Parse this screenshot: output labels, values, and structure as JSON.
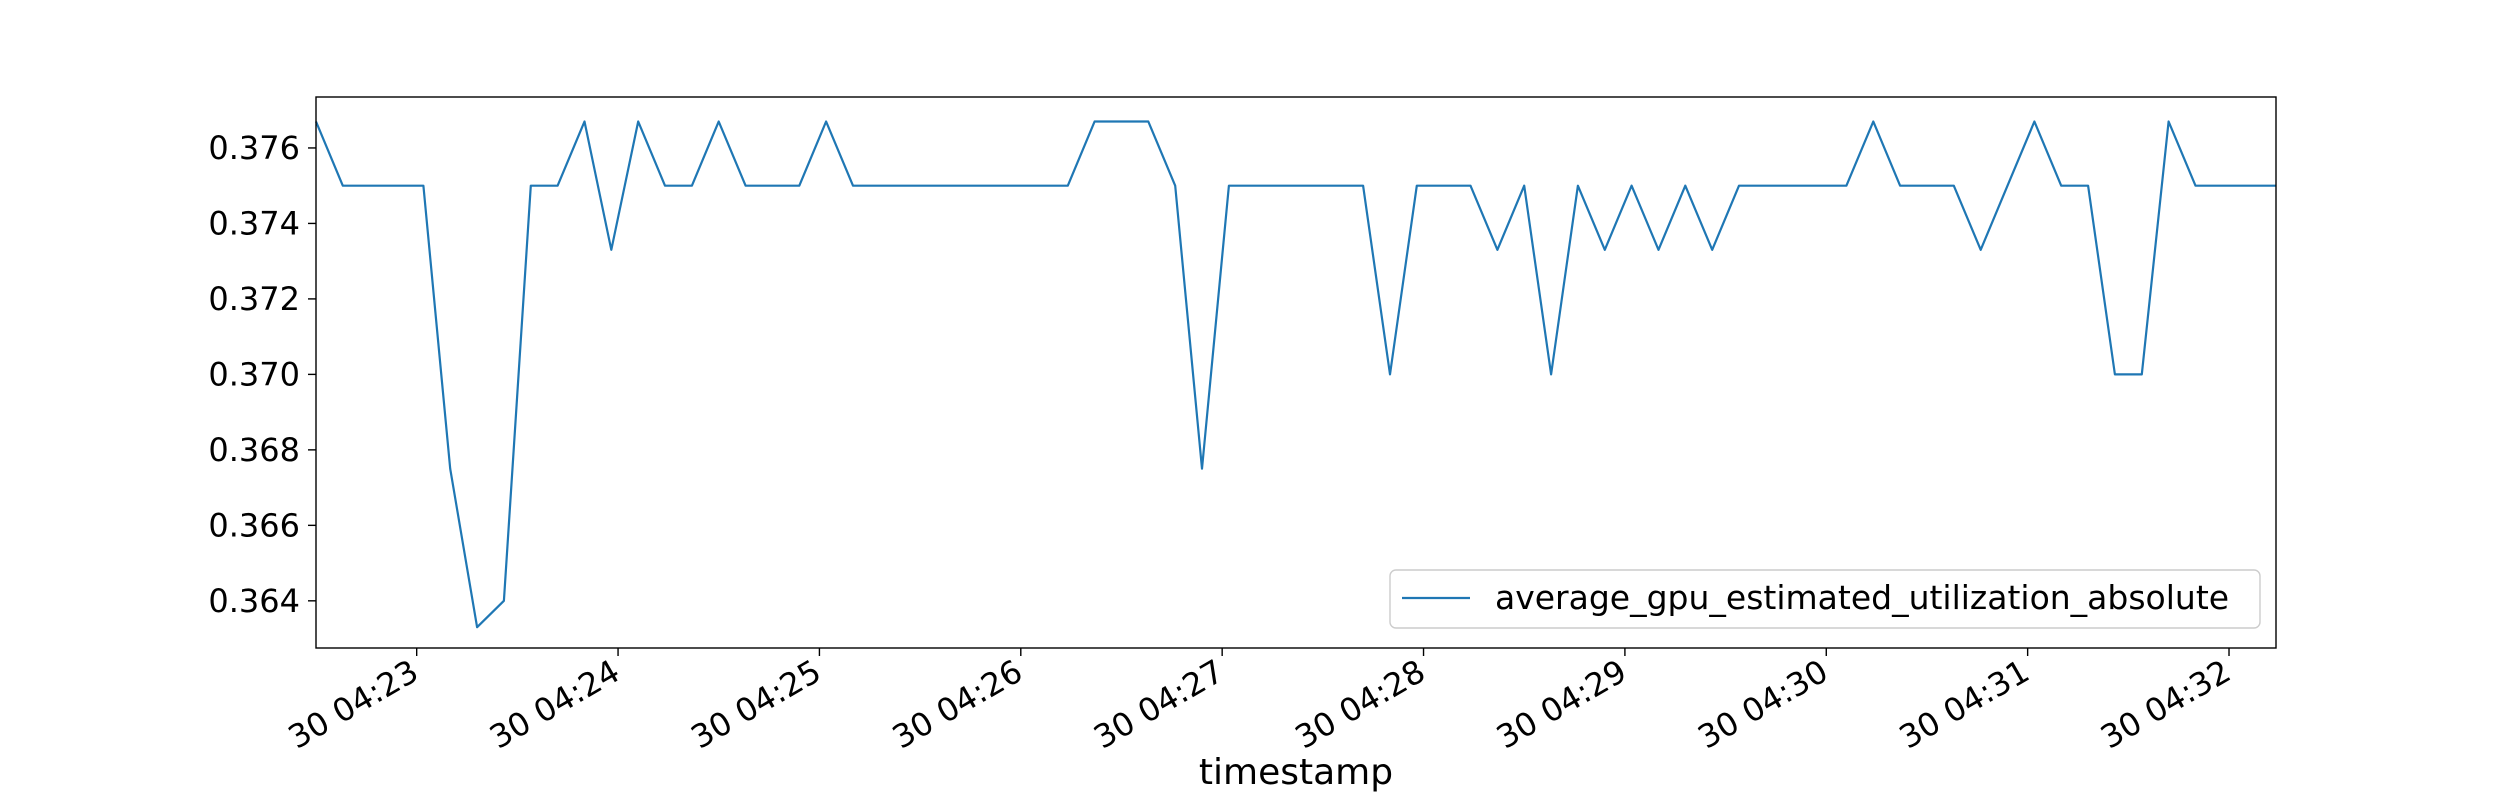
{
  "chart_data": {
    "type": "line",
    "xlabel": "timestamp",
    "ylabel": "",
    "title": "",
    "grid": false,
    "legend_position": "lower right",
    "line_color": "#1f77b4",
    "x_start": "30 04:22:30",
    "x_step_seconds": 8,
    "x_tick_labels": [
      "30 04:23",
      "30 04:24",
      "30 04:25",
      "30 04:26",
      "30 04:27",
      "30 04:28",
      "30 04:29",
      "30 04:30",
      "30 04:31",
      "30 04:32"
    ],
    "y_ticks": [
      0.364,
      0.366,
      0.368,
      0.37,
      0.372,
      0.374,
      0.376
    ],
    "y_tick_labels": [
      "0.364",
      "0.366",
      "0.368",
      "0.370",
      "0.372",
      "0.374",
      "0.376"
    ],
    "ylim": [
      0.36275,
      0.37735
    ],
    "series": [
      {
        "name": "average_gpu_estimated_utilization_absolute",
        "values": [
          0.3767,
          0.375,
          0.375,
          0.375,
          0.375,
          0.3675,
          0.3633,
          0.364,
          0.375,
          0.375,
          0.3767,
          0.3733,
          0.3767,
          0.375,
          0.375,
          0.3767,
          0.375,
          0.375,
          0.375,
          0.3767,
          0.375,
          0.375,
          0.375,
          0.375,
          0.375,
          0.375,
          0.375,
          0.375,
          0.375,
          0.3767,
          0.3767,
          0.3767,
          0.375,
          0.3675,
          0.375,
          0.375,
          0.375,
          0.375,
          0.375,
          0.375,
          0.37,
          0.375,
          0.375,
          0.375,
          0.3733,
          0.375,
          0.37,
          0.375,
          0.3733,
          0.375,
          0.3733,
          0.375,
          0.3733,
          0.375,
          0.375,
          0.375,
          0.375,
          0.375,
          0.3767,
          0.375,
          0.375,
          0.375,
          0.3733,
          0.375,
          0.3767,
          0.375,
          0.375,
          0.37,
          0.37,
          0.3767,
          0.375,
          0.375,
          0.375,
          0.375
        ]
      }
    ]
  }
}
